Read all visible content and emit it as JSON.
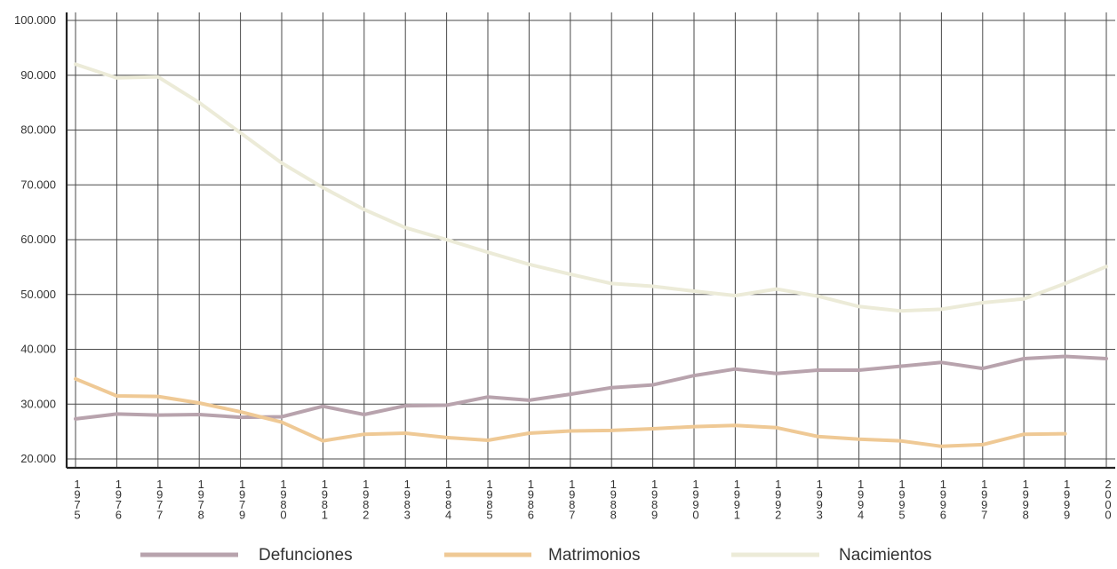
{
  "chart_data": {
    "type": "line",
    "title": "",
    "xlabel": "",
    "ylabel": "",
    "ylim": [
      20000,
      100000
    ],
    "yticks": [
      "20.000",
      "30.000",
      "40.000",
      "50.000",
      "60.000",
      "70.000",
      "80.000",
      "90.000",
      "100.000"
    ],
    "ytick_values": [
      20000,
      30000,
      40000,
      50000,
      60000,
      70000,
      80000,
      90000,
      100000
    ],
    "categories": [
      "1975",
      "1976",
      "1977",
      "1978",
      "1979",
      "1980",
      "1981",
      "1982",
      "1983",
      "1984",
      "1985",
      "1986",
      "1987",
      "1988",
      "1989",
      "1990",
      "1991",
      "1992",
      "1993",
      "1994",
      "1995",
      "1996",
      "1997",
      "1998",
      "1999",
      "2000"
    ],
    "grid": true,
    "legend_position": "bottom",
    "series": [
      {
        "name": "Defunciones",
        "color": "#b8a3ad",
        "values": [
          27300,
          28200,
          28000,
          28100,
          27600,
          27700,
          29600,
          28100,
          29700,
          29800,
          31300,
          30700,
          31800,
          33000,
          33500,
          35200,
          36400,
          35600,
          36200,
          36200,
          36900,
          37600,
          36500,
          38300,
          38700,
          38300
        ]
      },
      {
        "name": "Matrimonios",
        "color": "#efc995",
        "values": [
          34600,
          31500,
          31400,
          30200,
          28600,
          26700,
          23300,
          24500,
          24700,
          23900,
          23400,
          24700,
          25100,
          25200,
          25500,
          25900,
          26100,
          25700,
          24100,
          23600,
          23300,
          22300,
          22600,
          24500,
          24600,
          null
        ]
      },
      {
        "name": "Nacimientos",
        "color": "#ecebd8",
        "values": [
          92000,
          89500,
          89700,
          85000,
          79500,
          74000,
          69500,
          65500,
          62200,
          60000,
          57700,
          55500,
          53700,
          52000,
          51500,
          50600,
          49800,
          51000,
          49700,
          47800,
          47000,
          47300,
          48500,
          49200,
          52000,
          55100
        ]
      }
    ]
  }
}
